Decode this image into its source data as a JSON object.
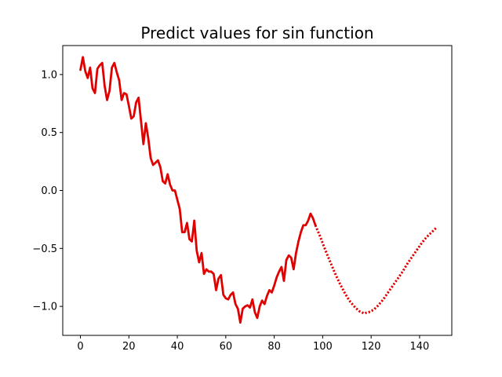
{
  "chart_data": {
    "type": "line",
    "title": "Predict values for sin function",
    "xlabel": "",
    "ylabel": "",
    "xlim": [
      -7.3,
      153.3
    ],
    "ylim": [
      -1.25,
      1.25
    ],
    "x_ticks": [
      0,
      20,
      40,
      60,
      80,
      100,
      120,
      140
    ],
    "x_tick_labels": [
      "0",
      "20",
      "40",
      "60",
      "80",
      "100",
      "120",
      "140"
    ],
    "y_ticks": [
      1.0,
      0.5,
      0.0,
      -0.5,
      -1.0
    ],
    "y_tick_labels": [
      "1.0",
      "0.5",
      "0.0",
      "−0.5",
      "−1.0"
    ],
    "grid": false,
    "color": "#e00000",
    "series": [
      {
        "style": "solid",
        "x": [
          0,
          1,
          2,
          3,
          4,
          5,
          6,
          7,
          8,
          9,
          10,
          11,
          12,
          13,
          14,
          15,
          16,
          17,
          18,
          19,
          20,
          21,
          22,
          23,
          24,
          25,
          26,
          27,
          28,
          29,
          30,
          31,
          32,
          33,
          34,
          35,
          36,
          37,
          38,
          39,
          40,
          41,
          42,
          43,
          44,
          45,
          46,
          47,
          48,
          49,
          50,
          51,
          52,
          53,
          54,
          55,
          56,
          57,
          58,
          59,
          60,
          61,
          62,
          63,
          64,
          65,
          66,
          67,
          68,
          69,
          70,
          71,
          72,
          73,
          74,
          75,
          76,
          77,
          78,
          79,
          80,
          81,
          82,
          83,
          84,
          85,
          86,
          87,
          88,
          89,
          90,
          91,
          92,
          93,
          94,
          95,
          96,
          97
        ],
        "y": [
          1.04,
          1.15,
          1.03,
          0.97,
          1.06,
          0.88,
          0.84,
          1.05,
          1.08,
          1.1,
          0.9,
          0.78,
          0.86,
          1.06,
          1.1,
          1.02,
          0.95,
          0.78,
          0.84,
          0.83,
          0.73,
          0.62,
          0.64,
          0.76,
          0.8,
          0.6,
          0.4,
          0.58,
          0.45,
          0.28,
          0.22,
          0.24,
          0.26,
          0.2,
          0.08,
          0.06,
          0.14,
          0.05,
          0.0,
          0.0,
          -0.08,
          -0.16,
          -0.36,
          -0.36,
          -0.28,
          -0.42,
          -0.44,
          -0.26,
          -0.52,
          -0.62,
          -0.54,
          -0.72,
          -0.68,
          -0.7,
          -0.7,
          -0.72,
          -0.86,
          -0.76,
          -0.73,
          -0.9,
          -0.93,
          -0.94,
          -0.9,
          -0.88,
          -0.98,
          -1.02,
          -1.14,
          -1.02,
          -1.0,
          -0.99,
          -1.01,
          -0.94,
          -1.05,
          -1.1,
          -1.0,
          -0.95,
          -0.98,
          -0.91,
          -0.86,
          -0.88,
          -0.82,
          -0.75,
          -0.7,
          -0.66,
          -0.78,
          -0.6,
          -0.56,
          -0.58,
          -0.68,
          -0.54,
          -0.44,
          -0.36,
          -0.3,
          -0.3,
          -0.26,
          -0.2,
          -0.24,
          -0.3
        ]
      },
      {
        "style": "dotted",
        "x": [
          97,
          99,
          101,
          103,
          105,
          107,
          109,
          111,
          113,
          115,
          117,
          119,
          121,
          123,
          125,
          127,
          129,
          131,
          133,
          135,
          137,
          139,
          141,
          143,
          145,
          147
        ],
        "y": [
          -0.3,
          -0.4,
          -0.51,
          -0.61,
          -0.71,
          -0.8,
          -0.88,
          -0.95,
          -1.0,
          -1.04,
          -1.06,
          -1.05,
          -1.03,
          -0.99,
          -0.94,
          -0.88,
          -0.82,
          -0.76,
          -0.7,
          -0.63,
          -0.57,
          -0.51,
          -0.45,
          -0.4,
          -0.36,
          -0.32
        ]
      }
    ]
  }
}
